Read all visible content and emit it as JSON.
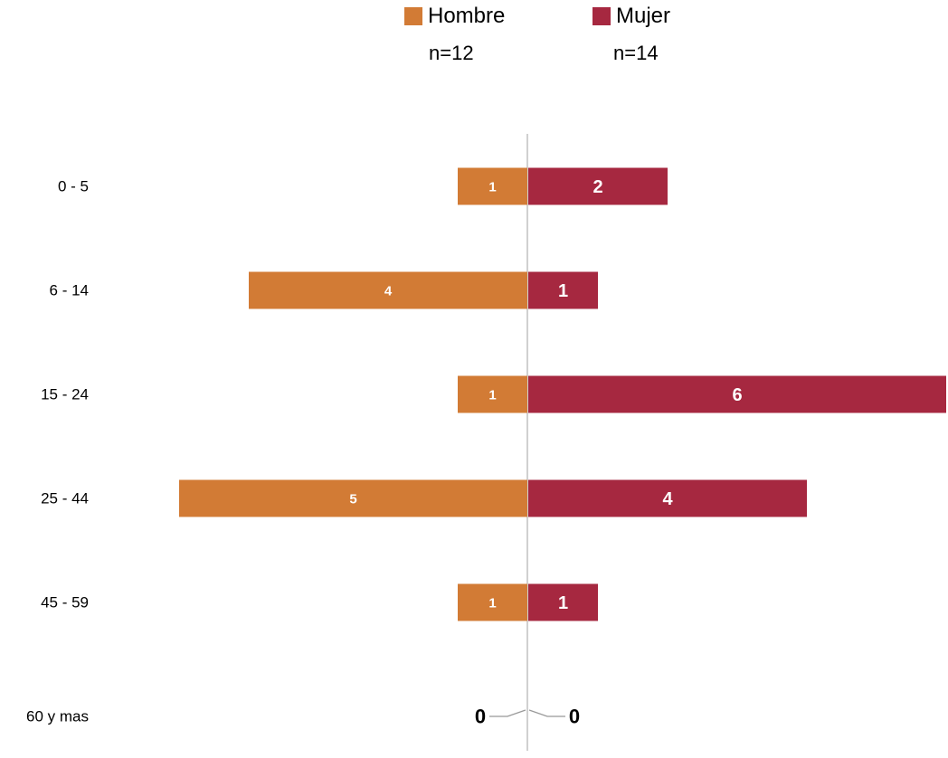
{
  "chart_data": {
    "type": "bar",
    "orientation": "horizontal",
    "layout": "diverging",
    "title": "",
    "xlabel": "",
    "ylabel": "",
    "categories": [
      "0 - 5",
      "6 - 14",
      "15 - 24",
      "25 - 44",
      "45 - 59",
      "60 y mas"
    ],
    "series": [
      {
        "name": "Hombre",
        "n_label": "n=12",
        "color": "#D27B35",
        "side": "left",
        "values": [
          1,
          4,
          1,
          5,
          1,
          0
        ]
      },
      {
        "name": "Mujer",
        "n_label": "n=14",
        "color": "#A62840",
        "side": "right",
        "values": [
          2,
          1,
          6,
          4,
          1,
          0
        ]
      }
    ],
    "xlim": [
      -5,
      6
    ],
    "grid": false,
    "legend_position": "top",
    "data_labels": true
  }
}
